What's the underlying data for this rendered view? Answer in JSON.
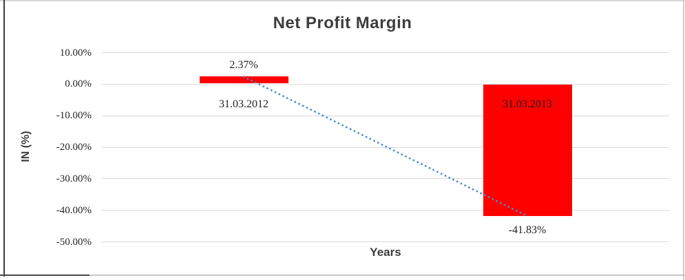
{
  "chart": {
    "title": "Net Profit Margin",
    "x_axis": {
      "title": "Years"
    },
    "y_axis": {
      "title": "IN (%)"
    }
  },
  "colors": {
    "bar": "#FF0000",
    "trendline": "#4A8BD0",
    "gridline": "#D9D9D9",
    "title_text": "#3D3D3D",
    "label_text": "#1F1F1F"
  },
  "chart_data": {
    "type": "bar",
    "title": "Net Profit Margin",
    "xlabel": "Years",
    "ylabel": "IN (%)",
    "categories": [
      "31.03.2012",
      "31.03.2013"
    ],
    "values": [
      2.37,
      -41.83
    ],
    "data_labels": [
      "2.37%",
      "-41.83%"
    ],
    "ylim": [
      -50,
      10
    ],
    "yticks": [
      10,
      0,
      -10,
      -20,
      -30,
      -40,
      -50
    ],
    "ytick_labels": [
      "10.00%",
      "0.00%",
      "-10.00%",
      "-20.00%",
      "-30.00%",
      "-40.00%",
      "-50.00%"
    ],
    "grid": true,
    "legend": "none",
    "bar_color": "#FF0000",
    "trendline": {
      "type": "linear",
      "style": "dotted",
      "color": "#4A8BD0",
      "points": [
        [
          0,
          2.37
        ],
        [
          1,
          -41.83
        ]
      ]
    }
  }
}
